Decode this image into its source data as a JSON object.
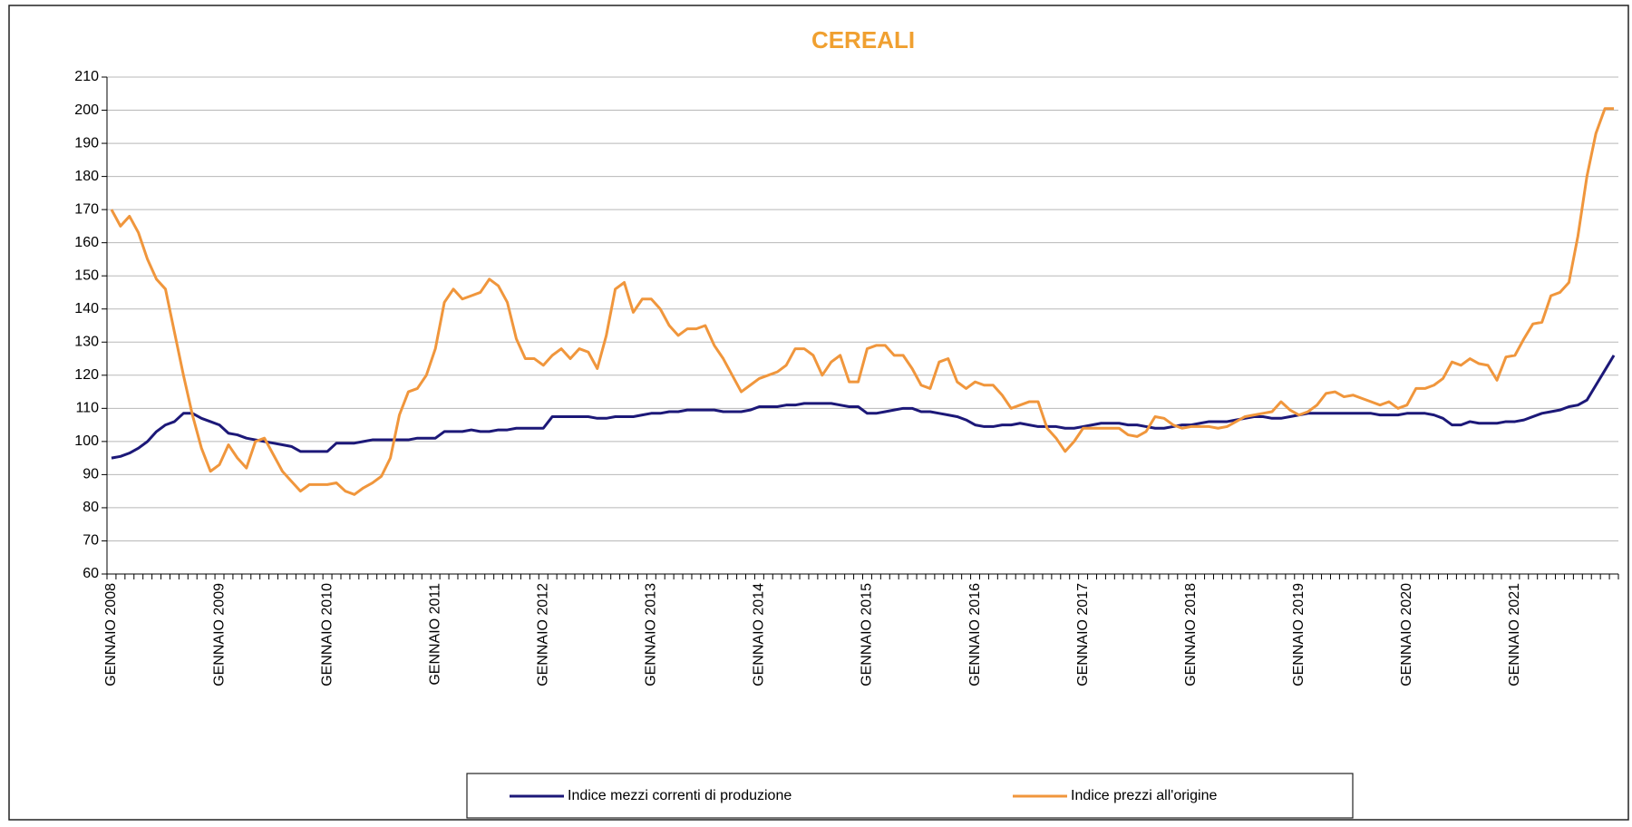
{
  "chart_data": {
    "type": "line",
    "title": "CEREALI",
    "categories": [
      "GENNAIO 2008",
      null,
      null,
      null,
      null,
      null,
      null,
      null,
      null,
      null,
      null,
      null,
      "GENNAIO 2009",
      null,
      null,
      null,
      null,
      null,
      null,
      null,
      null,
      null,
      null,
      null,
      "GENNAIO 2010",
      null,
      null,
      null,
      null,
      null,
      null,
      null,
      null,
      null,
      null,
      null,
      "GENNAIO 2011",
      null,
      null,
      null,
      null,
      null,
      null,
      null,
      null,
      null,
      null,
      null,
      "GENNAIO 2012",
      null,
      null,
      null,
      null,
      null,
      null,
      null,
      null,
      null,
      null,
      null,
      "GENNAIO 2013",
      null,
      null,
      null,
      null,
      null,
      null,
      null,
      null,
      null,
      null,
      null,
      "GENNAIO 2014",
      null,
      null,
      null,
      null,
      null,
      null,
      null,
      null,
      null,
      null,
      null,
      "GENNAIO 2015",
      null,
      null,
      null,
      null,
      null,
      null,
      null,
      null,
      null,
      null,
      null,
      "GENNAIO 2016",
      null,
      null,
      null,
      null,
      null,
      null,
      null,
      null,
      null,
      null,
      null,
      "GENNAIO 2017",
      null,
      null,
      null,
      null,
      null,
      null,
      null,
      null,
      null,
      null,
      null,
      "GENNAIO 2018",
      null,
      null,
      null,
      null,
      null,
      null,
      null,
      null,
      null,
      null,
      null,
      "GENNAIO 2019",
      null,
      null,
      null,
      null,
      null,
      null,
      null,
      null,
      null,
      null,
      null,
      "GENNAIO 2020",
      null,
      null,
      null,
      null,
      null,
      null,
      null,
      null,
      null,
      null,
      null,
      "GENNAIO 2021",
      null,
      null,
      null,
      null,
      null,
      null,
      null,
      null,
      null,
      null,
      null
    ],
    "series": [
      {
        "name": "Indice mezzi correnti di produzione",
        "color": "#1c1878",
        "values": [
          95,
          95.5,
          96.5,
          98,
          100,
          103,
          105,
          106,
          108.5,
          108.5,
          107,
          106,
          105,
          102.5,
          102,
          101,
          100.5,
          100,
          99.5,
          99,
          98.5,
          97,
          97,
          97,
          97,
          99.5,
          99.5,
          99.5,
          100,
          100.5,
          100.5,
          100.5,
          100.5,
          100.5,
          101,
          101,
          101,
          103,
          103,
          103,
          103.5,
          103,
          103,
          103.5,
          103.5,
          104,
          104,
          104,
          104,
          107.5,
          107.5,
          107.5,
          107.5,
          107.5,
          107,
          107,
          107.5,
          107.5,
          107.5,
          108,
          108.5,
          108.5,
          109,
          109,
          109.5,
          109.5,
          109.5,
          109.5,
          109,
          109,
          109,
          109.5,
          110.5,
          110.5,
          110.5,
          111,
          111,
          111.5,
          111.5,
          111.5,
          111.5,
          111,
          110.5,
          110.5,
          108.5,
          108.5,
          109,
          109.5,
          110,
          110,
          109,
          109,
          108.5,
          108,
          107.5,
          106.5,
          105,
          104.5,
          104.5,
          105,
          105,
          105.5,
          105,
          104.5,
          104.5,
          104.5,
          104,
          104,
          104.5,
          105,
          105.5,
          105.5,
          105.5,
          105,
          105,
          104.5,
          104,
          104,
          104.5,
          105,
          105,
          105.5,
          106,
          106,
          106,
          106.5,
          107,
          107.5,
          107.5,
          107,
          107,
          107.5,
          108,
          108.5,
          108.5,
          108.5,
          108.5,
          108.5,
          108.5,
          108.5,
          108.5,
          108,
          108,
          108,
          108.5,
          108.5,
          108.5,
          108,
          107,
          105,
          105,
          106,
          105.5,
          105.5,
          105.5,
          106,
          106,
          106.5,
          107.5,
          108.5,
          109,
          109.5,
          110.5,
          111,
          112.5,
          117,
          121.5,
          126
        ]
      },
      {
        "name": "Indice prezzi all'origine",
        "color": "#f0963c",
        "values": [
          170,
          165,
          168,
          163,
          155,
          149,
          146,
          133,
          120,
          108,
          98,
          91,
          93,
          99,
          95,
          92,
          100,
          101,
          96,
          91,
          88,
          85,
          87,
          87,
          87,
          87.5,
          85,
          84,
          86,
          87.5,
          89.5,
          95,
          108,
          115,
          116,
          120,
          128,
          142,
          146,
          143,
          144,
          145,
          149,
          147,
          142,
          131,
          125,
          125,
          123,
          126,
          128,
          125,
          128,
          127,
          122,
          132,
          146,
          148,
          139,
          143,
          143,
          140,
          135,
          132,
          134,
          134,
          135,
          129,
          125,
          120,
          115,
          117,
          119,
          120,
          121,
          123,
          128,
          128,
          126,
          120,
          124,
          126,
          118,
          118,
          128,
          129,
          129,
          126,
          126,
          122,
          117,
          116,
          124,
          125,
          118,
          116,
          118,
          117,
          117,
          114,
          110,
          111,
          112,
          112,
          104,
          101,
          97,
          100,
          104,
          104,
          104,
          104,
          104,
          102,
          101.5,
          103,
          107.5,
          107,
          105,
          104,
          104.5,
          104.5,
          104.5,
          104,
          104.5,
          106,
          107.5,
          108,
          108.5,
          109,
          112,
          109.5,
          108,
          109,
          111,
          114.5,
          115,
          113.5,
          114,
          113,
          112,
          111,
          112,
          110,
          111,
          116,
          116,
          117,
          119,
          124,
          123,
          125,
          123.5,
          123,
          118.5,
          125.5,
          126,
          131,
          135.5,
          136,
          144,
          145,
          148,
          162,
          180,
          193,
          200.5,
          200.5
        ]
      }
    ],
    "ylim": [
      60,
      210
    ],
    "yticks": [
      60,
      70,
      80,
      90,
      100,
      110,
      120,
      130,
      140,
      150,
      160,
      170,
      180,
      190,
      200,
      210
    ],
    "grid": true,
    "legend": "bottom"
  }
}
